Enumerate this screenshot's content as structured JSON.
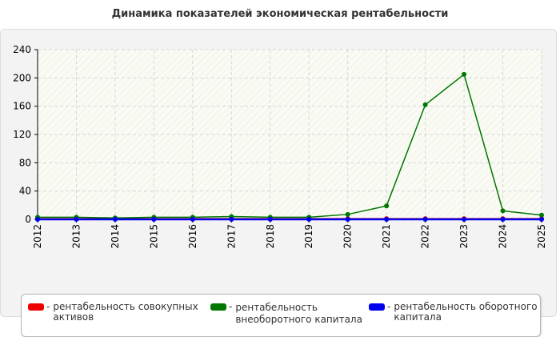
{
  "chart_data": {
    "type": "line",
    "title": "Динамика показателей экономическая рентабельности",
    "categories": [
      "2012",
      "2013",
      "2014",
      "2015",
      "2016",
      "2017",
      "2018",
      "2019",
      "2020",
      "2021",
      "2022",
      "2023",
      "2024",
      "2025"
    ],
    "ylim": [
      0,
      240
    ],
    "yticks": [
      0,
      40,
      80,
      120,
      160,
      200,
      240
    ],
    "grid": true,
    "legend_position": "bottom",
    "series": [
      {
        "name": "рентабельность совокупных активов",
        "color": "#ee0000",
        "values": [
          1,
          1,
          1,
          1,
          1,
          1,
          1,
          1,
          1,
          1,
          1,
          1,
          1,
          1
        ]
      },
      {
        "name": "рентабельность внеоборотного капитала",
        "color": "#007700",
        "values": [
          3,
          3,
          2,
          3,
          3,
          4,
          3,
          3,
          7,
          19,
          162,
          205,
          12,
          6
        ]
      },
      {
        "name": "рентабельность оборотного капитала",
        "color": "#0000ee",
        "values": [
          0,
          0,
          0,
          0,
          0,
          0,
          0,
          0,
          0,
          0,
          0,
          0,
          0,
          0
        ]
      }
    ]
  },
  "legend": {
    "dash": "-",
    "items": [
      {
        "label": "рентабельность совокупных активов",
        "line1": "рентабельность совокупных",
        "line2": "активов",
        "color": "#ee0000"
      },
      {
        "label": "рентабельность внеоборотного капитала",
        "line1": "рентабельность",
        "line2": "внеоборотного капитала",
        "color": "#007700"
      },
      {
        "label": "рентабельность оборотного капитала",
        "line1": "рентабельность оборотного",
        "line2": "капитала",
        "color": "#0000ee"
      }
    ]
  }
}
